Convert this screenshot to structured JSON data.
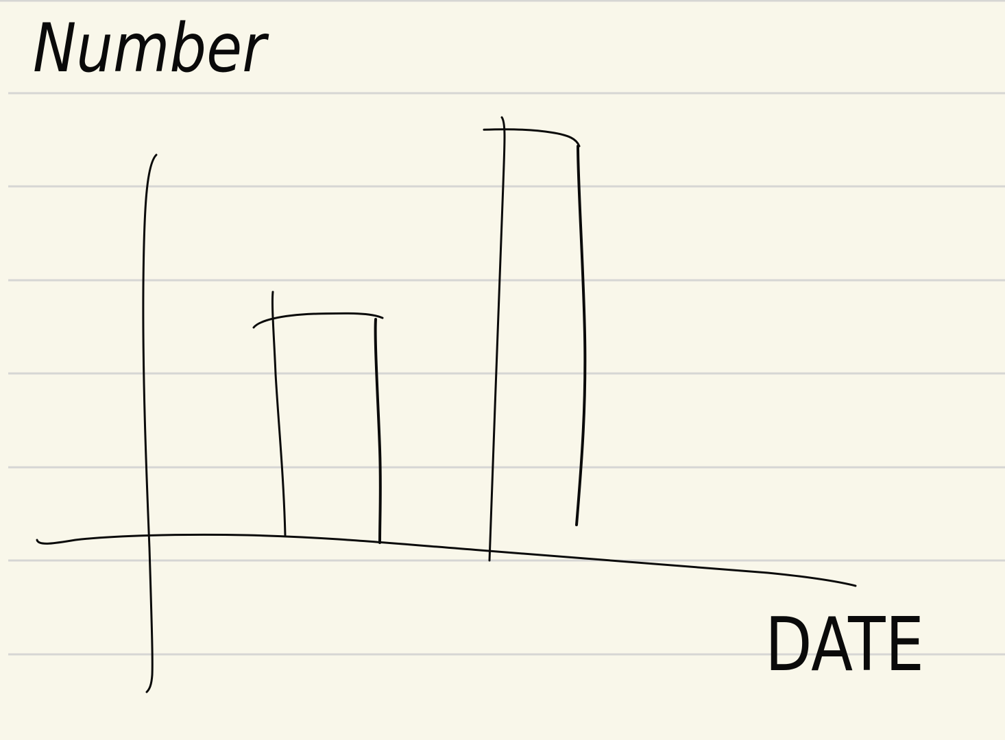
{
  "colors": {
    "paper": "#f9f7ea",
    "ruled_line": "#d6d6d4",
    "ink": "#0a0a0a"
  },
  "chart_data": {
    "type": "bar",
    "title": "",
    "ylabel": "Number",
    "xlabel": "DATE",
    "categories": [
      "",
      ""
    ],
    "values": [
      0.55,
      1.0
    ],
    "ylim": [
      0,
      1.1
    ],
    "grid": false,
    "legend": "none"
  }
}
